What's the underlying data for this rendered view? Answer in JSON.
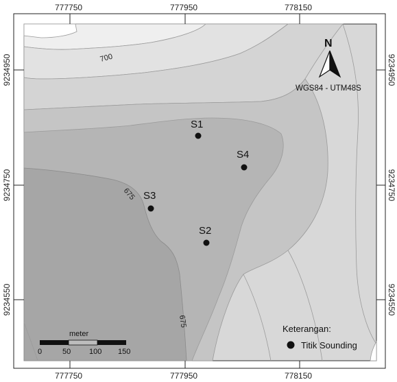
{
  "top_ticks": [
    "777750",
    "777950",
    "778150"
  ],
  "bottom_ticks": [
    "777750",
    "777950",
    "778150"
  ],
  "left_ticks": [
    "9234950",
    "9234750",
    "9234550"
  ],
  "right_ticks": [
    "9234950",
    "9234750",
    "9234550"
  ],
  "contour_labels": [
    "700",
    "675",
    "675"
  ],
  "points": [
    {
      "label": "S1"
    },
    {
      "label": "S4"
    },
    {
      "label": "S3"
    },
    {
      "label": "S2"
    }
  ],
  "north": {
    "letter": "N",
    "projection": "WGS84 - UTM48S"
  },
  "legend": {
    "title": "Keterangan:",
    "item": "Titik Sounding"
  },
  "scalebar": {
    "unit": "meter",
    "ticks": [
      "0",
      "50",
      "100",
      "150"
    ]
  },
  "colors": {
    "band1": "#efefef",
    "band2": "#e1e1e1",
    "band3": "#d3d3d3",
    "band4": "#c3c3c3",
    "band5": "#b3b3b3",
    "band6": "#a4a4a4",
    "contour_line": "#9a9a9a"
  }
}
